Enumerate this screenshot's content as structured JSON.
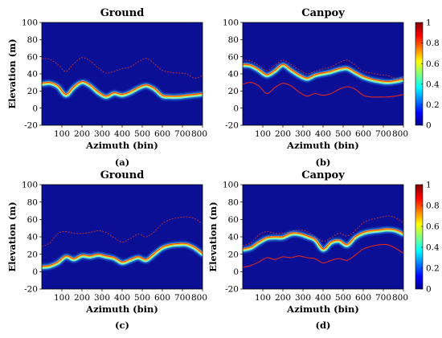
{
  "colors": {
    "background": "#0a0f96",
    "dashed_line": "#c8332e",
    "solid_line": "#e02820",
    "colormap": [
      "#00008f",
      "#0000ff",
      "#00ffff",
      "#ffff00",
      "#ff0000",
      "#800000"
    ]
  },
  "chart_data": [
    {
      "id": "a",
      "type": "heatmap",
      "title": "Ground",
      "panel_label": "(a)",
      "xlabel": "Azimuth (bin)",
      "ylabel": "Elevation (m)",
      "xlim": [
        0,
        800
      ],
      "ylim": [
        -20,
        100
      ],
      "xticks": [
        100,
        200,
        300,
        400,
        500,
        600,
        700,
        800
      ],
      "yticks": [
        -20,
        0,
        20,
        40,
        60,
        80,
        100
      ],
      "band": {
        "x": [
          0,
          40,
          80,
          120,
          160,
          200,
          240,
          280,
          320,
          360,
          400,
          440,
          480,
          520,
          560,
          600,
          640,
          680,
          720,
          760,
          800
        ],
        "y": [
          28,
          29,
          25,
          15,
          24,
          30,
          26,
          18,
          13,
          17,
          15,
          18,
          23,
          26,
          22,
          14,
          13,
          13,
          14,
          15,
          16
        ]
      },
      "dashed_line": {
        "x": [
          0,
          40,
          80,
          120,
          160,
          200,
          240,
          280,
          320,
          360,
          400,
          440,
          480,
          520,
          560,
          600,
          640,
          680,
          720,
          760,
          800
        ],
        "y": [
          58,
          57,
          51,
          43,
          52,
          59,
          55,
          47,
          41,
          43,
          46,
          48,
          54,
          58,
          52,
          44,
          42,
          41,
          40,
          35,
          38
        ]
      }
    },
    {
      "id": "b",
      "type": "heatmap",
      "title": "Canpoy",
      "panel_label": "(b)",
      "xlabel": "Azimuth (bin)",
      "ylabel": "",
      "xlim": [
        0,
        800
      ],
      "ylim": [
        -20,
        100
      ],
      "xticks": [
        100,
        200,
        300,
        400,
        500,
        600,
        700,
        800
      ],
      "yticks": [
        -20,
        0,
        20,
        40,
        60,
        80,
        100
      ],
      "colorbar": {
        "range": [
          0,
          1
        ],
        "ticks": [
          0,
          0.2,
          0.4,
          0.6,
          0.8,
          1
        ]
      },
      "band": {
        "x": [
          0,
          40,
          80,
          120,
          160,
          200,
          240,
          280,
          320,
          360,
          400,
          440,
          480,
          520,
          560,
          600,
          640,
          680,
          720,
          760,
          800
        ],
        "y": [
          50,
          49,
          44,
          38,
          43,
          50,
          44,
          38,
          34,
          38,
          40,
          42,
          45,
          46,
          41,
          36,
          33,
          31,
          30,
          31,
          33
        ]
      },
      "dashed_line": {
        "x": [
          0,
          40,
          80,
          120,
          160,
          200,
          240,
          280,
          320,
          360,
          400,
          440,
          480,
          520,
          560,
          600,
          640,
          680,
          720,
          760,
          800
        ],
        "y": [
          56,
          55,
          50,
          44,
          50,
          56,
          51,
          45,
          40,
          43,
          46,
          48,
          53,
          56,
          50,
          43,
          41,
          39,
          38,
          35,
          37
        ]
      },
      "solid_line": {
        "x": [
          0,
          40,
          80,
          120,
          160,
          200,
          240,
          280,
          320,
          360,
          400,
          440,
          480,
          520,
          560,
          600,
          640,
          680,
          720,
          760,
          800
        ],
        "y": [
          28,
          30,
          26,
          17,
          24,
          29,
          26,
          19,
          14,
          17,
          15,
          17,
          22,
          25,
          22,
          15,
          13,
          13,
          13,
          14,
          16
        ]
      }
    },
    {
      "id": "c",
      "type": "heatmap",
      "title": "Ground",
      "panel_label": "(c)",
      "xlabel": "Azimuth (bin)",
      "ylabel": "Elevation (m)",
      "xlim": [
        0,
        800
      ],
      "ylim": [
        -20,
        100
      ],
      "xticks": [
        100,
        200,
        300,
        400,
        500,
        600,
        700,
        800
      ],
      "yticks": [
        -20,
        0,
        20,
        40,
        60,
        80,
        100
      ],
      "band": {
        "x": [
          0,
          40,
          80,
          120,
          160,
          200,
          240,
          280,
          320,
          360,
          400,
          440,
          480,
          520,
          560,
          600,
          640,
          680,
          720,
          760,
          800
        ],
        "y": [
          5,
          6,
          10,
          17,
          14,
          18,
          17,
          19,
          17,
          15,
          10,
          13,
          16,
          13,
          20,
          27,
          30,
          31,
          31,
          27,
          20
        ]
      },
      "dashed_line": {
        "x": [
          0,
          40,
          80,
          120,
          160,
          200,
          240,
          280,
          320,
          360,
          400,
          440,
          480,
          520,
          560,
          600,
          640,
          680,
          720,
          760,
          800
        ],
        "y": [
          29,
          33,
          44,
          46,
          44,
          44,
          45,
          47,
          45,
          39,
          34,
          38,
          43,
          40,
          46,
          55,
          60,
          62,
          63,
          61,
          55
        ]
      }
    },
    {
      "id": "d",
      "type": "heatmap",
      "title": "Canpoy",
      "panel_label": "(d)",
      "xlabel": "Azimuth (bin)",
      "ylabel": "Elevation (m)",
      "xlim": [
        0,
        800
      ],
      "ylim": [
        -20,
        100
      ],
      "xticks": [
        100,
        200,
        300,
        400,
        500,
        600,
        700,
        800
      ],
      "yticks": [
        -20,
        0,
        20,
        40,
        60,
        80,
        100
      ],
      "colorbar": {
        "range": [
          0,
          1
        ],
        "ticks": [
          0,
          0.2,
          0.4,
          0.6,
          0.8,
          1
        ]
      },
      "band": {
        "x": [
          0,
          40,
          80,
          120,
          160,
          200,
          240,
          280,
          320,
          360,
          400,
          440,
          480,
          520,
          560,
          600,
          640,
          680,
          720,
          760,
          800
        ],
        "y": [
          25,
          27,
          33,
          38,
          39,
          39,
          43,
          43,
          40,
          36,
          25,
          33,
          35,
          30,
          39,
          44,
          46,
          47,
          48,
          47,
          43
        ]
      },
      "dashed_line": {
        "x": [
          0,
          40,
          80,
          120,
          160,
          200,
          240,
          280,
          320,
          360,
          400,
          440,
          480,
          520,
          560,
          600,
          640,
          680,
          720,
          760,
          800
        ],
        "y": [
          30,
          33,
          42,
          46,
          44,
          44,
          46,
          48,
          46,
          40,
          35,
          39,
          44,
          41,
          47,
          56,
          60,
          62,
          64,
          62,
          56
        ]
      },
      "solid_line": {
        "x": [
          0,
          40,
          80,
          120,
          160,
          200,
          240,
          280,
          320,
          360,
          400,
          440,
          480,
          520,
          560,
          600,
          640,
          680,
          720,
          760,
          800
        ],
        "y": [
          5,
          7,
          11,
          16,
          14,
          17,
          16,
          18,
          16,
          15,
          10,
          13,
          15,
          13,
          19,
          26,
          29,
          31,
          31,
          27,
          21
        ]
      }
    }
  ]
}
